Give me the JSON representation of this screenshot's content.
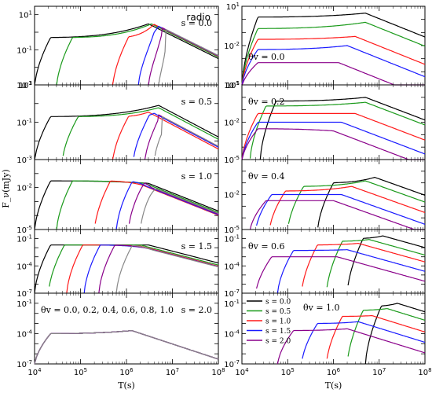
{
  "chart_data": {
    "type": "line",
    "x_label": "T(s)",
    "y_label": "F_ν(mJy)",
    "x_scale": "log",
    "x_range": [
      10000,
      100000000
    ],
    "x_ticks": [
      "10^4",
      "10^5",
      "10^6",
      "10^7",
      "10^8"
    ],
    "theta_values": [
      "0.0",
      "0.2",
      "0.4",
      "0.6",
      "0.8",
      "1.0"
    ],
    "colors": {
      "0.0": "#000000",
      "0.2": "#1a9a1a",
      "0.4": "#ff1a1a",
      "0.6": "#1a1aff",
      "0.8": "#8a008a",
      "1.0": "#888888"
    },
    "left_column": [
      {
        "annotation": "s = 0.0",
        "title": "radio",
        "ylim": [
          0.001,
          30
        ],
        "yticks": [
          "10^{-3}",
          "10^{-1}",
          "10^{1}"
        ],
        "series": [
          {
            "theta": "0.0",
            "peak_t": 3000000,
            "onset_t": 10000,
            "plateau_y": 0.5,
            "peak_y": 3,
            "late_slope": -1.3
          },
          {
            "theta": "0.2",
            "peak_t": 3500000,
            "onset_t": 30000,
            "plateau_y": 0.5,
            "peak_y": 3,
            "late_slope": -1.3
          },
          {
            "theta": "0.4",
            "peak_t": 4000000,
            "onset_t": 500000,
            "plateau_y": 0.5,
            "peak_y": 2.8,
            "late_slope": -1.3
          },
          {
            "theta": "0.6",
            "peak_t": 5000000,
            "onset_t": 1800000,
            "plateau_y": 0.5,
            "peak_y": 2.2,
            "late_slope": -1.3
          },
          {
            "theta": "0.8",
            "peak_t": 6000000,
            "onset_t": 3000000,
            "plateau_y": 0.5,
            "peak_y": 1.8,
            "late_slope": -1.3
          },
          {
            "theta": "1.0",
            "peak_t": 7000000,
            "onset_t": 5000000,
            "plateau_y": 0.5,
            "peak_y": 1.5,
            "late_slope": -1.3
          }
        ]
      },
      {
        "annotation": "s = 0.5",
        "ylim": [
          0.001,
          10
        ],
        "yticks": [
          "10^{-3}",
          "10^{-1}",
          "10^{1}"
        ],
        "series": [
          {
            "theta": "0.0",
            "peak_t": 5000000,
            "onset_t": 10000,
            "plateau_y": 0.2,
            "peak_y": 0.8,
            "late_slope": -1.3
          },
          {
            "theta": "0.2",
            "peak_t": 5000000,
            "onset_t": 40000,
            "plateau_y": 0.2,
            "peak_y": 0.6,
            "late_slope": -1.3
          },
          {
            "theta": "0.4",
            "peak_t": 3000000,
            "onset_t": 500000,
            "plateau_y": 0.2,
            "peak_y": 0.35,
            "late_slope": -1.3
          },
          {
            "theta": "0.6",
            "peak_t": 4000000,
            "onset_t": 1400000,
            "plateau_y": 0.2,
            "peak_y": 0.3,
            "late_slope": -1.3
          },
          {
            "theta": "0.8",
            "peak_t": 5000000,
            "onset_t": 2500000,
            "plateau_y": 0.2,
            "peak_y": 0.25,
            "late_slope": -1.3
          },
          {
            "theta": "1.0",
            "peak_t": 6000000,
            "onset_t": 4000000,
            "plateau_y": 0.2,
            "peak_y": 0.2,
            "late_slope": -1.3
          }
        ]
      },
      {
        "annotation": "s = 1.0",
        "ylim": [
          1e-05,
          1
        ],
        "yticks": [
          "10^{-5}",
          "10^{-2}"
        ],
        "series": [
          {
            "theta": "0.0",
            "peak_t": 3000000,
            "onset_t": 10000,
            "plateau_y": 0.03,
            "peak_y": 0.02,
            "late_slope": -1.3
          },
          {
            "theta": "0.2",
            "peak_t": 2500000,
            "onset_t": 30000,
            "plateau_y": 0.03,
            "peak_y": 0.02,
            "late_slope": -1.3
          },
          {
            "theta": "0.4",
            "peak_t": 2200000,
            "onset_t": 200000,
            "plateau_y": 0.03,
            "peak_y": 0.015,
            "late_slope": -1.3
          },
          {
            "theta": "0.6",
            "peak_t": 2800000,
            "onset_t": 600000,
            "plateau_y": 0.03,
            "peak_y": 0.012,
            "late_slope": -1.3
          },
          {
            "theta": "0.8",
            "peak_t": 3500000,
            "onset_t": 1100000,
            "plateau_y": 0.03,
            "peak_y": 0.01,
            "late_slope": -1.3
          },
          {
            "theta": "1.0",
            "peak_t": 4500000,
            "onset_t": 2000000,
            "plateau_y": 0.03,
            "peak_y": 0.008,
            "late_slope": -1.3
          }
        ]
      },
      {
        "annotation": "s = 1.5",
        "ylim": [
          1e-07,
          1
        ],
        "yticks": [
          "10^{-7}",
          "10^{-4}",
          "10^{-1}"
        ],
        "series": [
          {
            "theta": "0.0",
            "peak_t": 3000000,
            "onset_t": 10000,
            "plateau_y": 0.02,
            "peak_y": 0.02,
            "late_slope": -1.3
          },
          {
            "theta": "0.2",
            "peak_t": 2000000,
            "onset_t": 20000,
            "plateau_y": 0.02,
            "peak_y": 0.02,
            "late_slope": -1.3
          },
          {
            "theta": "0.4",
            "peak_t": 2000000,
            "onset_t": 50000,
            "plateau_y": 0.02,
            "peak_y": 0.015,
            "late_slope": -1.3
          },
          {
            "theta": "0.6",
            "peak_t": 2500000,
            "onset_t": 120000,
            "plateau_y": 0.02,
            "peak_y": 0.01,
            "late_slope": -1.3
          },
          {
            "theta": "0.8",
            "peak_t": 3000000,
            "onset_t": 250000,
            "plateau_y": 0.02,
            "peak_y": 0.008,
            "late_slope": -1.3
          },
          {
            "theta": "1.0",
            "peak_t": 3500000,
            "onset_t": 600000,
            "plateau_y": 0.02,
            "peak_y": 0.006,
            "late_slope": -1.3
          }
        ]
      },
      {
        "annotation": "s = 2.0",
        "legend_text": "θv = 0.0, 0.2, 0.4, 0.6, 0.8, 1.0",
        "ylim": [
          1e-07,
          1
        ],
        "yticks": [
          "10^{-7}",
          "10^{-4}",
          "10^{-1}"
        ],
        "series": [
          {
            "theta": "0.0",
            "peak_t": 1300000,
            "onset_t": 10000,
            "plateau_y": 0.0001,
            "peak_y": 0.0002,
            "late_slope": -1.5
          },
          {
            "theta": "0.2",
            "peak_t": 1300000,
            "onset_t": 10000,
            "plateau_y": 0.0001,
            "peak_y": 0.0002,
            "late_slope": -1.5
          },
          {
            "theta": "0.4",
            "peak_t": 1300000,
            "onset_t": 10000,
            "plateau_y": 0.0001,
            "peak_y": 0.0002,
            "late_slope": -1.5
          },
          {
            "theta": "0.6",
            "peak_t": 1300000,
            "onset_t": 10000,
            "plateau_y": 0.0001,
            "peak_y": 0.0002,
            "late_slope": -1.5
          },
          {
            "theta": "0.8",
            "peak_t": 1300000,
            "onset_t": 10000,
            "plateau_y": 0.0001,
            "peak_y": 0.0002,
            "late_slope": -1.5
          },
          {
            "theta": "1.0",
            "peak_t": 1300000,
            "onset_t": 10000,
            "plateau_y": 0.0001,
            "peak_y": 0.0002,
            "late_slope": -1.5
          }
        ]
      }
    ],
    "right_s_values": [
      "0.0",
      "0.5",
      "1.0",
      "1.5",
      "2.0"
    ],
    "right_colors": {
      "0.0": "#000000",
      "0.5": "#1a9a1a",
      "1.0": "#ff1a1a",
      "1.5": "#1a1aff",
      "2.0": "#8a008a"
    },
    "right_column": [
      {
        "annotation": "θv = 0.0",
        "ylim": [
          1e-05,
          10
        ],
        "yticks": [
          "10^{-5}",
          "10^{-2}",
          "10^{1}"
        ],
        "series": [
          {
            "s": "0.0",
            "onset_t": 10000,
            "peak_t": 5000000,
            "plateau_y": 1.5,
            "peak_y": 3
          },
          {
            "s": "0.5",
            "onset_t": 10000,
            "peak_t": 5000000,
            "plateau_y": 0.2,
            "peak_y": 0.6
          },
          {
            "s": "1.0",
            "onset_t": 10000,
            "peak_t": 3000000,
            "plateau_y": 0.03,
            "peak_y": 0.05
          },
          {
            "s": "1.5",
            "onset_t": 10000,
            "peak_t": 2000000,
            "plateau_y": 0.005,
            "peak_y": 0.01
          },
          {
            "s": "2.0",
            "onset_t": 10000,
            "peak_t": 1300000,
            "plateau_y": 0.0005,
            "peak_y": 0.0005
          }
        ]
      },
      {
        "annotation": "θv = 0.2",
        "ylim": [
          1e-05,
          10
        ],
        "yticks": [
          "10^{-5}",
          "10^{-2}",
          "10^{1}"
        ],
        "series": [
          {
            "s": "0.0",
            "onset_t": 25000,
            "peak_t": 5000000,
            "plateau_y": 0.5,
            "peak_y": 1
          },
          {
            "s": "0.5",
            "onset_t": 15000,
            "peak_t": 5000000,
            "plateau_y": 0.2,
            "peak_y": 0.4
          },
          {
            "s": "1.0",
            "onset_t": 10000,
            "peak_t": 3000000,
            "plateau_y": 0.05,
            "peak_y": 0.05
          },
          {
            "s": "1.5",
            "onset_t": 10000,
            "peak_t": 1500000,
            "plateau_y": 0.01,
            "peak_y": 0.01
          },
          {
            "s": "2.0",
            "onset_t": 10000,
            "peak_t": 1000000,
            "plateau_y": 0.003,
            "peak_y": 0.002
          }
        ]
      },
      {
        "annotation": "θv = 0.4",
        "ylim": [
          1e-05,
          10
        ],
        "yticks": [
          "10^{-5}",
          "10^{-2}"
        ],
        "series": [
          {
            "s": "0.0",
            "onset_t": 450000,
            "peak_t": 8000000,
            "plateau_y": 0.1,
            "peak_y": 0.3
          },
          {
            "s": "0.5",
            "onset_t": 100000,
            "peak_t": 5000000,
            "plateau_y": 0.05,
            "peak_y": 0.15
          },
          {
            "s": "1.0",
            "onset_t": 40000,
            "peak_t": 2500000,
            "plateau_y": 0.02,
            "peak_y": 0.05
          },
          {
            "s": "1.5",
            "onset_t": 20000,
            "peak_t": 1500000,
            "plateau_y": 0.01,
            "peak_y": 0.01
          },
          {
            "s": "2.0",
            "onset_t": 15000,
            "peak_t": 1000000,
            "plateau_y": 0.003,
            "peak_y": 0.003
          }
        ]
      },
      {
        "annotation": "θv = 0.6",
        "ylim": [
          1e-07,
          1
        ],
        "yticks": [
          "10^{-7}",
          "10^{-4}",
          "10^{-1}"
        ],
        "series": [
          {
            "s": "0.0",
            "onset_t": 2000000,
            "peak_t": 12000000,
            "plateau_y": 0.1,
            "peak_y": 0.2
          },
          {
            "s": "0.5",
            "onset_t": 700000,
            "peak_t": 6000000,
            "plateau_y": 0.05,
            "peak_y": 0.08
          },
          {
            "s": "1.0",
            "onset_t": 200000,
            "peak_t": 3500000,
            "plateau_y": 0.02,
            "peak_y": 0.03
          },
          {
            "s": "1.5",
            "onset_t": 60000,
            "peak_t": 2000000,
            "plateau_y": 0.005,
            "peak_y": 0.006
          },
          {
            "s": "2.0",
            "onset_t": 20000,
            "peak_t": 1200000,
            "plateau_y": 0.001,
            "peak_y": 0.001
          }
        ]
      },
      {
        "annotation": "θv = 1.0",
        "ylim": [
          1e-07,
          1
        ],
        "yticks": [
          "10^{-7}",
          "10^{-4}",
          "10^{-1}"
        ],
        "series": [
          {
            "s": "0.0",
            "onset_t": 5000000,
            "peak_t": 25000000,
            "plateau_y": 0.05,
            "peak_y": 0.1
          },
          {
            "s": "0.5",
            "onset_t": 2000000,
            "peak_t": 15000000,
            "plateau_y": 0.02,
            "peak_y": 0.03
          },
          {
            "s": "1.0",
            "onset_t": 700000,
            "peak_t": 7000000,
            "plateau_y": 0.005,
            "peak_y": 0.006
          },
          {
            "s": "1.5",
            "onset_t": 200000,
            "peak_t": 3500000,
            "plateau_y": 0.001,
            "peak_y": 0.0015
          },
          {
            "s": "2.0",
            "onset_t": 60000,
            "peak_t": 2000000,
            "plateau_y": 0.0002,
            "peak_y": 0.0003
          }
        ]
      }
    ],
    "legend": [
      {
        "label": "s = 0.0",
        "color": "#000000"
      },
      {
        "label": "s = 0.5",
        "color": "#1a9a1a"
      },
      {
        "label": "s = 1.0",
        "color": "#ff1a1a"
      },
      {
        "label": "s = 1.5",
        "color": "#1a1aff"
      },
      {
        "label": "s = 2.0",
        "color": "#8a008a"
      }
    ]
  }
}
